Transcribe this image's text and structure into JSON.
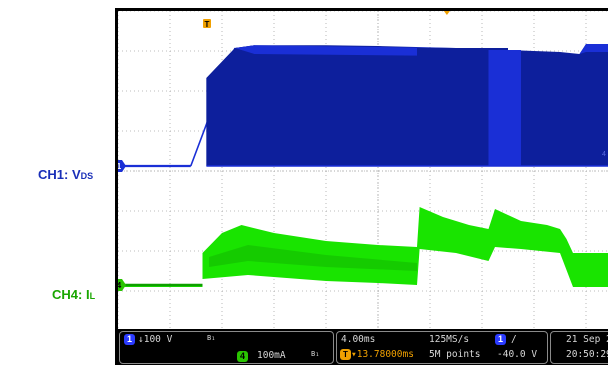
{
  "labels": {
    "ch1_main": "CH1: V",
    "ch1_sub": "DS",
    "ch4_main": "CH4: I",
    "ch4_sub": "L"
  },
  "colors": {
    "ch1": "#1a2fd6",
    "ch1_dark": "#0d1f9c",
    "ch1_mid": "#1a35d0",
    "ch4": "#19e400",
    "ch4_dark": "#0e9f00",
    "grid": "#a8a8a8",
    "trigger": "#f0a000"
  },
  "status": {
    "ch1_num": "1",
    "ch1_scale": "↓100 V",
    "ch1_bw": "B₁",
    "ch4_num": "4",
    "ch4_scale": "100mA",
    "ch4_bw": "B₁",
    "timebase": "4.00ms",
    "trigger_pos": "▾13.78000ms",
    "sample_rate": "125MS/s",
    "record_length": "5M points",
    "trig_ch": "1",
    "trig_slope": "/",
    "trig_level": "-40.0 V",
    "date": "21 Sep 2",
    "time": "20:50:29"
  },
  "markers": {
    "trigger": "T",
    "ch1_ground": "1",
    "ch4_ground": "4",
    "ch1_right": "4"
  },
  "chart_data": {
    "type": "line",
    "x_unit": "ms",
    "x_per_div": 4.0,
    "divisions_x": 10,
    "divisions_y": 8,
    "series": [
      {
        "name": "CH1: VDS",
        "channel": 1,
        "volts_per_div": 100,
        "envelope_top": [
          [
            0,
            0
          ],
          [
            5.6,
            0
          ],
          [
            9.0,
            2.95
          ],
          [
            10.5,
            3.02
          ],
          [
            16,
            3.02
          ],
          [
            20,
            3.0
          ],
          [
            26,
            2.95
          ],
          [
            30,
            2.9
          ],
          [
            34,
            2.85
          ],
          [
            35.5,
            2.8
          ],
          [
            36,
            3.05
          ],
          [
            40,
            3.05
          ]
        ],
        "envelope_bottom": [
          [
            0,
            0
          ],
          [
            5.6,
            0
          ],
          [
            6.8,
            0
          ],
          [
            6.8,
            0
          ],
          [
            40,
            0
          ]
        ],
        "ramp": [
          [
            5.6,
            0
          ],
          [
            9.0,
            2.95
          ]
        ]
      },
      {
        "name": "CH4: IL",
        "channel": 4,
        "amps_per_div": 0.1,
        "envelope_top": [
          [
            0,
            0
          ],
          [
            6.5,
            0
          ],
          [
            6.5,
            0.8
          ],
          [
            8,
            1.3
          ],
          [
            9.5,
            1.5
          ],
          [
            12,
            1.3
          ],
          [
            16,
            1.1
          ],
          [
            20,
            1.0
          ],
          [
            23,
            0.95
          ],
          [
            23.2,
            1.95
          ],
          [
            25,
            1.7
          ],
          [
            27,
            1.5
          ],
          [
            28.5,
            1.4
          ],
          [
            29,
            1.9
          ],
          [
            31,
            1.6
          ],
          [
            33,
            1.5
          ],
          [
            34,
            1.4
          ],
          [
            34.5,
            1.15
          ],
          [
            35,
            0.8
          ],
          [
            40,
            0.8
          ]
        ],
        "envelope_bottom": [
          [
            0,
            -0.05
          ],
          [
            6.5,
            -0.05
          ],
          [
            6.5,
            0.15
          ],
          [
            10,
            0.25
          ],
          [
            16,
            0.1
          ],
          [
            20,
            0.05
          ],
          [
            23,
            0.0
          ],
          [
            23.2,
            0.9
          ],
          [
            26,
            0.8
          ],
          [
            28.5,
            0.6
          ],
          [
            29,
            0.95
          ],
          [
            31,
            0.9
          ],
          [
            34,
            0.8
          ],
          [
            35,
            -0.05
          ],
          [
            38,
            -0.05
          ],
          [
            40,
            0.0
          ]
        ]
      }
    ]
  }
}
